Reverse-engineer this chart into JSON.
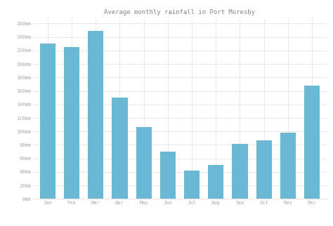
{
  "title": "Average monthly rainfall in Port Moresby",
  "months": [
    "Jan",
    "Feb",
    "Mar",
    "Apr",
    "May",
    "Jun",
    "Jul",
    "Aug",
    "Sep",
    "Oct",
    "Nov",
    "Dec"
  ],
  "values": [
    230,
    225,
    249,
    150,
    107,
    70,
    42,
    50,
    82,
    87,
    98,
    168
  ],
  "bar_color": "#6bb8d4",
  "yticks": [
    0,
    20,
    40,
    60,
    80,
    100,
    120,
    140,
    160,
    180,
    200,
    220,
    240,
    260
  ],
  "ylim": [
    0,
    268
  ],
  "ylabel_suffix": "mm",
  "background_color": "#ffffff",
  "grid_color": "#d8d8d8",
  "title_fontsize": 6.5,
  "tick_fontsize": 5.0,
  "title_color": "#888888",
  "tick_color": "#aaaaaa"
}
